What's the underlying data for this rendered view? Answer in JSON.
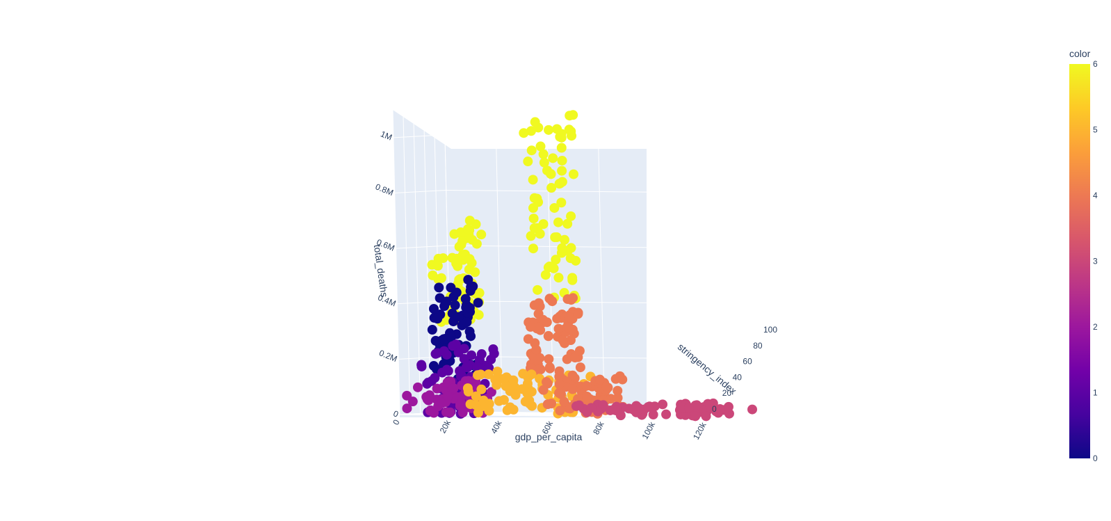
{
  "chart_data": {
    "type": "scatter",
    "mode": "3d",
    "x_axis": {
      "title": "gdp_per_capita",
      "range": [
        0,
        120000
      ],
      "ticks": [
        0,
        20000,
        40000,
        60000,
        80000,
        100000,
        120000
      ],
      "tick_labels": [
        "0",
        "20k",
        "40k",
        "60k",
        "80k",
        "100k",
        "120k"
      ]
    },
    "y_axis": {
      "title": "stringency_index",
      "range": [
        0,
        100
      ],
      "ticks": [
        0,
        20,
        40,
        60,
        80,
        100
      ],
      "tick_labels": [
        "0",
        "20",
        "40",
        "60",
        "80",
        "100"
      ]
    },
    "z_axis": {
      "title": "total_deaths",
      "range": [
        0,
        1100000
      ],
      "ticks": [
        0,
        200000,
        400000,
        600000,
        800000,
        1000000
      ],
      "tick_labels": [
        "0",
        "0.2M",
        "0.4M",
        "0.6M",
        "0.8M",
        "1M"
      ]
    },
    "colorbar": {
      "title": "color",
      "range": [
        0,
        6
      ],
      "ticks": [
        0,
        1,
        2,
        3,
        4,
        5,
        6
      ],
      "tick_labels": [
        "0",
        "1",
        "2",
        "3",
        "4",
        "5",
        "6"
      ],
      "colorscale": [
        "#0d0887",
        "#46039f",
        "#7201a8",
        "#9c179e",
        "#bd3786",
        "#d8576b",
        "#ed7953",
        "#fb9f3a",
        "#fdca26",
        "#f0f921"
      ]
    },
    "clusters": [
      {
        "color_value": 6,
        "gdp_range": [
          50000,
          52000
        ],
        "stringency_range": [
          0,
          100
        ],
        "deaths_range": [
          400000,
          1080000
        ]
      },
      {
        "color_value": 4,
        "gdp_range": [
          50000,
          52000
        ],
        "stringency_range": [
          0,
          100
        ],
        "deaths_range": [
          150000,
          420000
        ]
      },
      {
        "color_value": 6,
        "gdp_range": [
          8000,
          16000
        ],
        "stringency_range": [
          20,
          100
        ],
        "deaths_range": [
          320000,
          700000
        ]
      },
      {
        "color_value": 0,
        "gdp_range": [
          10000,
          16000
        ],
        "stringency_range": [
          10,
          90
        ],
        "deaths_range": [
          120000,
          480000
        ]
      },
      {
        "color_value": 1,
        "gdp_range": [
          8000,
          20000
        ],
        "stringency_range": [
          0,
          100
        ],
        "deaths_range": [
          0,
          260000
        ]
      },
      {
        "color_value": 2,
        "gdp_range": [
          0,
          20000
        ],
        "stringency_range": [
          0,
          100
        ],
        "deaths_range": [
          0,
          120000
        ]
      },
      {
        "color_value": 5,
        "gdp_range": [
          22000,
          60000
        ],
        "stringency_range": [
          0,
          100
        ],
        "deaths_range": [
          0,
          150000
        ]
      },
      {
        "color_value": 4,
        "gdp_range": [
          45000,
          70000
        ],
        "stringency_range": [
          30,
          100
        ],
        "deaths_range": [
          0,
          140000
        ]
      },
      {
        "color_value": 3,
        "gdp_range": [
          60000,
          120000
        ],
        "stringency_range": [
          10,
          100
        ],
        "deaths_range": [
          0,
          40000
        ]
      }
    ]
  }
}
